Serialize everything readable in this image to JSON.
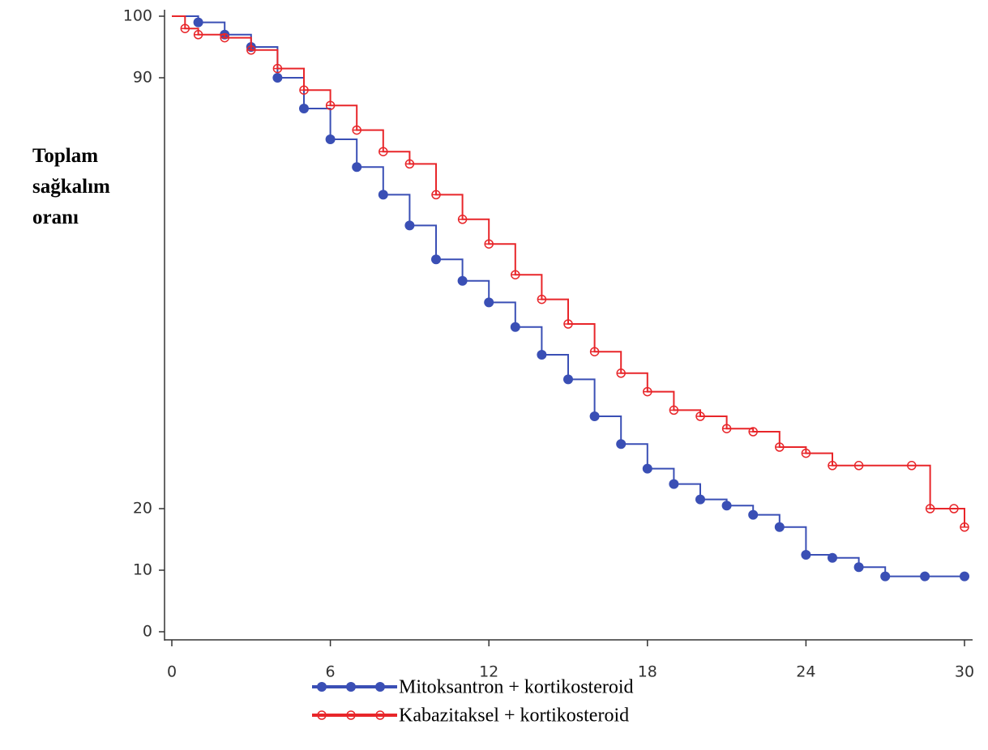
{
  "chart_data": {
    "type": "step-line",
    "y_label": [
      "Toplam",
      "sağkalım",
      "oranı"
    ],
    "xlim": [
      0,
      30
    ],
    "xticks": [
      0,
      6,
      12,
      18,
      24,
      30
    ],
    "ylim": [
      0,
      100
    ],
    "yticks": [
      0,
      10,
      20,
      90,
      100
    ],
    "series": [
      {
        "name": "Mitoksantron + kortikosteroid",
        "color": "#3a4fb5",
        "marker": "filled",
        "x": [
          0,
          1,
          2,
          3,
          4,
          5,
          6,
          7,
          8,
          9,
          10,
          11,
          12,
          13,
          14,
          15,
          16,
          17,
          18,
          19,
          20,
          21,
          22,
          23,
          24,
          25,
          26,
          27,
          28.5,
          30
        ],
        "values": [
          100,
          99,
          97,
          95,
          90,
          85,
          80,
          75.5,
          71,
          66,
          60.5,
          57,
          53.5,
          49.5,
          45,
          41,
          35,
          30.5,
          26.5,
          24,
          21.5,
          20.5,
          19,
          17,
          12.5,
          12,
          10.5,
          9,
          9,
          9
        ]
      },
      {
        "name": "Kabazitaksel + kortikosteroid",
        "color": "#e8262a",
        "marker": "open",
        "x": [
          0,
          0.5,
          1,
          2,
          3,
          4,
          5,
          6,
          7,
          8,
          9,
          10,
          11,
          12,
          13,
          14,
          15,
          16,
          17,
          18,
          19,
          20,
          21,
          22,
          23,
          24,
          25,
          26,
          28,
          28.7,
          29.6,
          30
        ],
        "values": [
          100,
          98,
          97,
          96.5,
          94.5,
          91.5,
          88,
          85.5,
          81.5,
          78,
          76,
          71,
          67,
          63,
          58,
          54,
          50,
          45.5,
          42,
          39,
          36,
          35,
          33,
          32.5,
          30,
          29,
          27,
          27,
          27,
          20,
          20,
          17
        ]
      }
    ]
  }
}
